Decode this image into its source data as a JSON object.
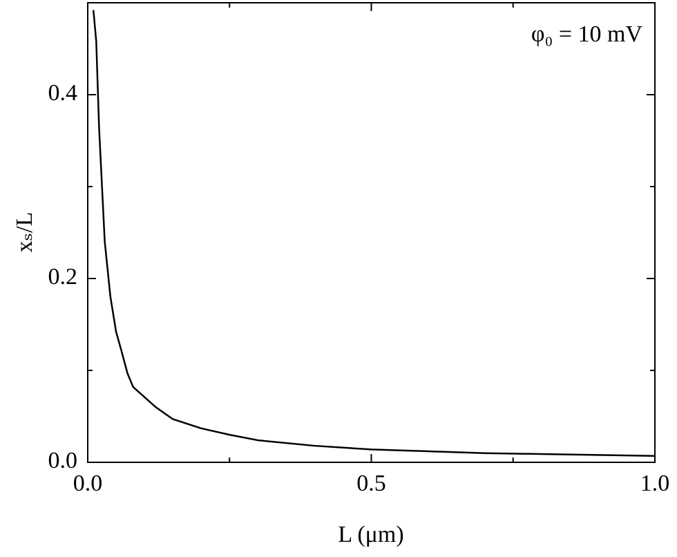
{
  "chart_data": {
    "type": "line",
    "annotation": "φ₀ = 10 mV",
    "xlabel": "L (μm)",
    "ylabel": "xₛ/L",
    "x": [
      0.01,
      0.015,
      0.02,
      0.03,
      0.04,
      0.05,
      0.06,
      0.07,
      0.08,
      0.1,
      0.12,
      0.15,
      0.2,
      0.25,
      0.3,
      0.4,
      0.5,
      0.6,
      0.7,
      0.8,
      0.9,
      1.0
    ],
    "series": [
      {
        "color": "#000000",
        "values": [
          0.492,
          0.458,
          0.364,
          0.24,
          0.18,
          0.142,
          0.12,
          0.097,
          0.082,
          0.071,
          0.06,
          0.047,
          0.037,
          0.03,
          0.024,
          0.018,
          0.014,
          0.012,
          0.01,
          0.009,
          0.008,
          0.007
        ]
      }
    ],
    "xlim": [
      0,
      1.0
    ],
    "ylim": [
      0,
      0.5
    ],
    "xticks": [
      {
        "value": 0,
        "label": "0.0"
      },
      {
        "value": 0.5,
        "label": "0.5"
      },
      {
        "value": 1.0,
        "label": "1.0"
      }
    ],
    "yticks": [
      {
        "value": 0,
        "label": "0.0"
      },
      {
        "value": 0.2,
        "label": "0.2"
      },
      {
        "value": 0.4,
        "label": "0.4"
      }
    ],
    "xminorticks": [
      0.25,
      0.75
    ],
    "yminorticks": [
      0.1,
      0.3
    ]
  }
}
